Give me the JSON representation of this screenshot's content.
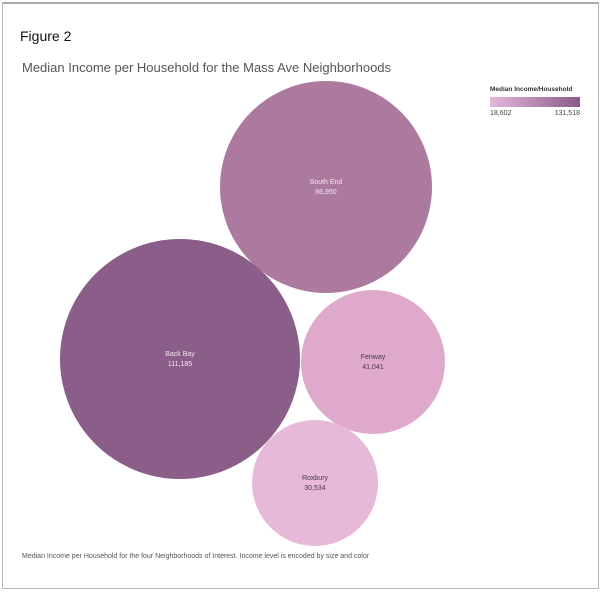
{
  "figure_label": "Figure 2",
  "caption": "Median Income per Household for the four Neighborhoods of Interest.  Income level is encoded by size and color",
  "colors": {
    "legend_low": "#e4b8d9",
    "legend_high": "#8a5a8a"
  },
  "chart_data": {
    "type": "bubble",
    "title": "Median Income per Household for the Mass Ave Neighborhoods",
    "legend": {
      "title": "Median Income/Household",
      "min_label": "18,602",
      "max_label": "131,518",
      "min": 18602,
      "max": 131518,
      "placement": "top-right"
    },
    "bubbles": [
      {
        "label": "South End",
        "value_label": "86,950",
        "value": 86950,
        "color": "#ad7a9f"
      },
      {
        "label": "Back Bay",
        "value_label": "111,185",
        "value": 111185,
        "color": "#8a5e88"
      },
      {
        "label": "Fenway",
        "value_label": "41,041",
        "value": 41041,
        "color": "#dea9ca"
      },
      {
        "label": "Roxbury",
        "value_label": "30,534",
        "value": 30534,
        "color": "#e7b9d9"
      }
    ]
  }
}
